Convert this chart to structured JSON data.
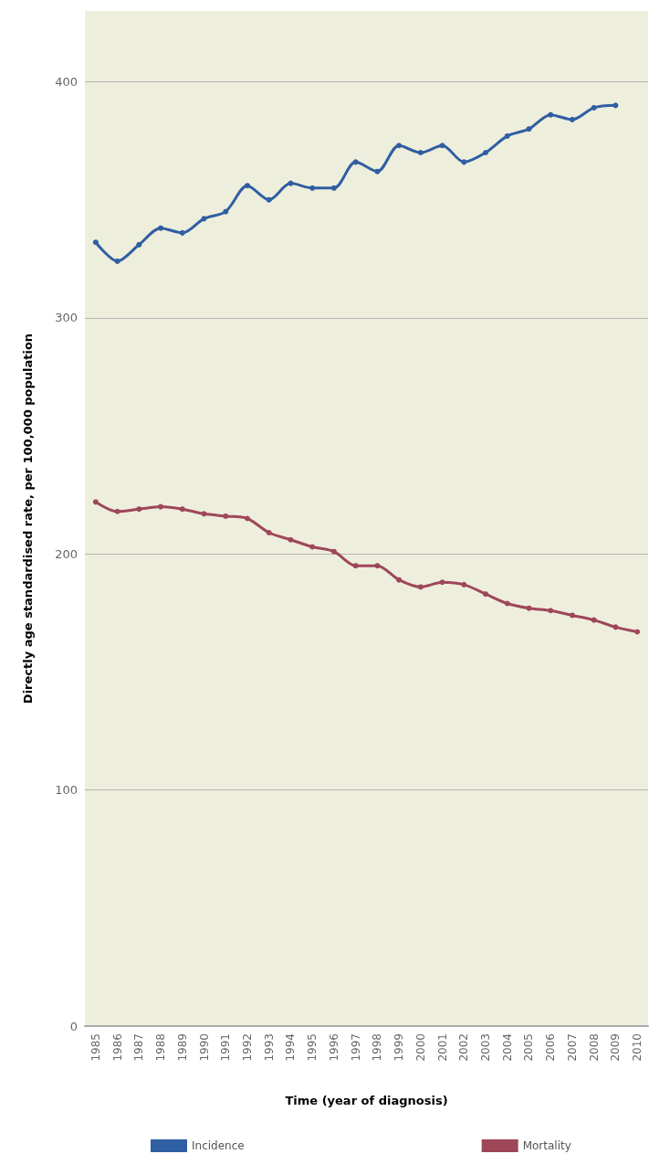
{
  "chart_data": {
    "type": "line",
    "xlabel": "Time (year of diagnosis)",
    "ylabel": "Directly age standardised rate, per 100,000 population",
    "categories": [
      "1985",
      "1986",
      "1987",
      "1988",
      "1989",
      "1990",
      "1991",
      "1992",
      "1993",
      "1994",
      "1995",
      "1996",
      "1997",
      "1998",
      "1999",
      "2000",
      "2001",
      "2002",
      "2003",
      "2004",
      "2005",
      "2006",
      "2007",
      "2008",
      "2009",
      "2010"
    ],
    "series": [
      {
        "name": "Incidence",
        "color": "#2f5ea3",
        "values": [
          332,
          324,
          331,
          338,
          336,
          342,
          345,
          356,
          350,
          357,
          355,
          355,
          366,
          362,
          373,
          370,
          373,
          366,
          370,
          377,
          380,
          386,
          384,
          389,
          390,
          null
        ]
      },
      {
        "name": "Mortality",
        "color": "#9e4759",
        "values": [
          222,
          218,
          219,
          220,
          219,
          217,
          216,
          215,
          209,
          206,
          203,
          201,
          195,
          195,
          189,
          186,
          188,
          187,
          183,
          179,
          177,
          176,
          174,
          172,
          169,
          167
        ]
      }
    ],
    "ylim": [
      0,
      430
    ],
    "yticks": [
      0,
      100,
      200,
      300,
      400
    ],
    "grid": "y",
    "legend": "bottom",
    "marker": "circle",
    "line_style": "solid"
  }
}
